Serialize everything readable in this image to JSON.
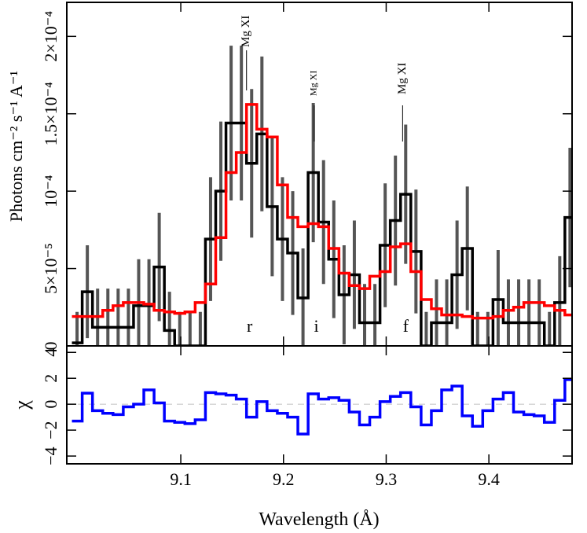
{
  "chart_data": [
    {
      "type": "step",
      "ylabel": "Photons cm⁻² s⁻¹ A⁻¹",
      "x": [
        8.999,
        9.009,
        9.019,
        9.029,
        9.039,
        9.049,
        9.059,
        9.069,
        9.079,
        9.089,
        9.099,
        9.109,
        9.119,
        9.129,
        9.139,
        9.149,
        9.159,
        9.169,
        9.179,
        9.189,
        9.199,
        9.209,
        9.219,
        9.229,
        9.239,
        9.249,
        9.259,
        9.269,
        9.279,
        9.289,
        9.299,
        9.309,
        9.319,
        9.329,
        9.339,
        9.349,
        9.359,
        9.369,
        9.379,
        9.389,
        9.399,
        9.409,
        9.419,
        9.429,
        9.439,
        9.449,
        9.459,
        9.469,
        9.479
      ],
      "series": [
        {
          "color": "#000000",
          "values": [
            2e-06,
            3.5e-05,
            1.2e-05,
            1.2e-05,
            1.2e-05,
            1.2e-05,
            2.6e-05,
            2.6e-05,
            5.1e-05,
            1e-05,
            0,
            0,
            0,
            6.9e-05,
            0.0001,
            0.000144,
            0.000144,
            0.000118,
            0.000137,
            9e-05,
            6.9e-05,
            6e-05,
            3.1e-05,
            0.000112,
            8e-05,
            5.6e-05,
            3.3e-05,
            4.6e-05,
            1.5e-05,
            1.5e-05,
            6.5e-05,
            8.1e-05,
            9.8e-05,
            6.1e-05,
            0,
            1.5e-05,
            1.5e-05,
            4.6e-05,
            6.3e-05,
            0,
            0,
            3e-05,
            1.5e-05,
            1.5e-05,
            1.5e-05,
            1.5e-05,
            0,
            2.8e-05,
            8.3e-05
          ],
          "errors": [
            2e-05,
            3e-05,
            2.5e-05,
            2.5e-05,
            2.5e-05,
            2.5e-05,
            3e-05,
            3e-05,
            3.5e-05,
            2.5e-05,
            2.2e-05,
            2.2e-05,
            2.2e-05,
            4e-05,
            4.5e-05,
            5e-05,
            5e-05,
            4.8e-05,
            5e-05,
            4.5e-05,
            4e-05,
            4e-05,
            3.2e-05,
            4.5e-05,
            4e-05,
            3.8e-05,
            3.2e-05,
            3.5e-05,
            2.5e-05,
            2.5e-05,
            4e-05,
            4.2e-05,
            4.5e-05,
            4e-05,
            2.2e-05,
            2.8e-05,
            2.8e-05,
            3.5e-05,
            4e-05,
            2.2e-05,
            2.2e-05,
            3.2e-05,
            2.8e-05,
            2.8e-05,
            2.8e-05,
            2.8e-05,
            2.2e-05,
            3e-05,
            4.5e-05
          ],
          "error_color": "#555555"
        },
        {
          "color": "#ff0000",
          "values": [
            1.9e-05,
            1.9e-05,
            1.9e-05,
            2.3e-05,
            2.6e-05,
            2.8e-05,
            2.8e-05,
            2.7e-05,
            2.3e-05,
            2.2e-05,
            2.1e-05,
            2.2e-05,
            2.8e-05,
            4e-05,
            7e-05,
            0.000112,
            0.000125,
            0.000156,
            0.00014,
            0.000135,
            0.000104,
            8.3e-05,
            7.7e-05,
            7.9e-05,
            7.7e-05,
            6.3e-05,
            4.7e-05,
            3.9e-05,
            3.7e-05,
            4.5e-05,
            4.8e-05,
            6.4e-05,
            6.6e-05,
            4.8e-05,
            3e-05,
            2.4e-05,
            2e-05,
            2e-05,
            1.9e-05,
            1.8e-05,
            1.8e-05,
            1.9e-05,
            2.3e-05,
            2.5e-05,
            2.8e-05,
            2.8e-05,
            2.6e-05,
            2.3e-05,
            2e-05
          ]
        }
      ],
      "xlim": [
        8.989,
        9.481
      ],
      "ylim": [
        0,
        0.000222
      ],
      "yticks": [
        0,
        {
          "value": 5e-05,
          "label": "5×10⁻⁵"
        },
        {
          "value": 0.0001,
          "label": "10⁻⁴"
        },
        {
          "value": 0.00015,
          "label": "1.5×10⁻⁴"
        },
        {
          "value": 0.0002,
          "label": "2×10⁻⁴"
        }
      ],
      "annotations": [
        {
          "text": "Mg XI",
          "x": 9.164
        },
        {
          "text": "Mg XI",
          "x": 9.23
        },
        {
          "text": "Mg XI",
          "x": 9.316
        },
        {
          "text": "r",
          "x": 9.167
        },
        {
          "text": "i",
          "x": 9.232
        },
        {
          "text": "f",
          "x": 9.319
        }
      ]
    },
    {
      "type": "step",
      "xlabel": "Wavelength (Å)",
      "ylabel": "χ",
      "x": [
        8.999,
        9.009,
        9.019,
        9.029,
        9.039,
        9.049,
        9.059,
        9.069,
        9.079,
        9.089,
        9.099,
        9.109,
        9.119,
        9.129,
        9.139,
        9.149,
        9.159,
        9.169,
        9.179,
        9.189,
        9.199,
        9.209,
        9.219,
        9.229,
        9.239,
        9.249,
        9.259,
        9.269,
        9.279,
        9.289,
        9.299,
        9.309,
        9.319,
        9.329,
        9.339,
        9.349,
        9.359,
        9.369,
        9.379,
        9.389,
        9.399,
        9.409,
        9.419,
        9.429,
        9.439,
        9.449,
        9.459,
        9.469,
        9.479
      ],
      "series": [
        {
          "color": "#0000ff",
          "values": [
            -1.3,
            0.85,
            -0.5,
            -0.7,
            -0.8,
            -0.2,
            0,
            1.1,
            0.1,
            -1.3,
            -1.4,
            -1.5,
            -1.2,
            0.9,
            0.8,
            0.7,
            0.4,
            -1.0,
            0.2,
            -0.5,
            -0.7,
            -1.0,
            -2.3,
            0.8,
            0.4,
            0.5,
            0.3,
            -0.6,
            -1.6,
            -1.0,
            0.2,
            0.6,
            0.9,
            -0.2,
            -1.6,
            -0.5,
            1.1,
            1.4,
            -0.9,
            -1.7,
            -0.5,
            0.4,
            0.9,
            -0.6,
            -0.8,
            -0.9,
            -1.4,
            0.3,
            1.9
          ]
        }
      ],
      "hline": 0,
      "xlim": [
        8.989,
        9.481
      ],
      "ylim": [
        -4.6,
        4.5
      ],
      "xticks": [
        9.1,
        9.2,
        9.3,
        9.4
      ],
      "yticks": [
        {
          "value": -4,
          "label": "−4"
        },
        {
          "value": -2,
          "label": "−2"
        },
        0,
        2,
        4
      ]
    }
  ]
}
